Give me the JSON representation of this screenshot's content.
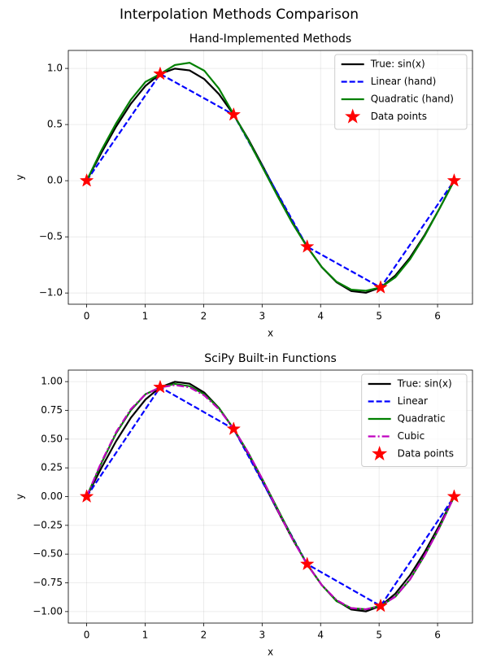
{
  "title": "Interpolation Methods Comparison",
  "chart_data": [
    {
      "type": "line",
      "title": "Hand-Implemented Methods",
      "xlabel": "x",
      "ylabel": "y",
      "xlim": [
        -0.314,
        6.597
      ],
      "ylim": [
        -1.1,
        1.16
      ],
      "xticks": [
        0,
        1,
        2,
        3,
        4,
        5,
        6
      ],
      "yticks": [
        {
          "value": -1,
          "label": "−1.0"
        },
        {
          "value": -0.5,
          "label": "−0.5"
        },
        {
          "value": 0,
          "label": "0.0"
        },
        {
          "value": 0.5,
          "label": "0.5"
        },
        {
          "value": 1,
          "label": "1.0"
        }
      ],
      "grid": true,
      "legend": "upper right",
      "series": [
        {
          "name": "True: sin(x)",
          "color": "#000000",
          "style": "solid",
          "x": [
            0,
            0.2513,
            0.5027,
            0.754,
            1.0053,
            1.2566,
            1.508,
            1.7593,
            2.0106,
            2.2619,
            2.5133,
            2.7646,
            3.0159,
            3.2673,
            3.5186,
            3.7699,
            4.0212,
            4.2726,
            4.5239,
            4.7752,
            5.0265,
            5.2779,
            5.5292,
            5.7805,
            6.0319,
            6.2832
          ],
          "values": [
            0,
            0.2487,
            0.4818,
            0.6845,
            0.8443,
            0.9511,
            0.998,
            0.9823,
            0.9048,
            0.7705,
            0.5878,
            0.3681,
            0.1253,
            -0.1253,
            -0.3681,
            -0.5878,
            -0.7705,
            -0.9048,
            -0.9823,
            -0.998,
            -0.9511,
            -0.8443,
            -0.6845,
            -0.4818,
            -0.2487,
            0
          ]
        },
        {
          "name": "Linear (hand)",
          "color": "#0000ff",
          "style": "dashed",
          "x": [
            0,
            1.2566,
            2.5133,
            3.7699,
            5.0265,
            6.2832
          ],
          "values": [
            0,
            0.9511,
            0.5878,
            -0.5878,
            -0.9511,
            0
          ]
        },
        {
          "name": "Quadratic (hand)",
          "color": "#008000",
          "style": "solid",
          "x": [
            0,
            0.2513,
            0.5027,
            0.754,
            1.0053,
            1.2566,
            1.508,
            1.7593,
            2.0106,
            2.2619,
            2.5133,
            2.7646,
            3.0159,
            3.2673,
            3.5186,
            3.7699,
            4.0212,
            4.2726,
            4.5239,
            4.7752,
            5.0265,
            5.2779,
            5.5292,
            5.7805,
            6.0319,
            6.2832
          ],
          "values": [
            0,
            0.27,
            0.51,
            0.72,
            0.88,
            0.95,
            1.03,
            1.05,
            0.98,
            0.82,
            0.59,
            0.36,
            0.11,
            -0.14,
            -0.38,
            -0.59,
            -0.77,
            -0.9,
            -0.97,
            -0.98,
            -0.95,
            -0.86,
            -0.7,
            -0.49,
            -0.25,
            0
          ]
        },
        {
          "name": "Data points",
          "color": "#ff0000",
          "style": "star",
          "x": [
            0,
            1.2566,
            2.5133,
            3.7699,
            5.0265,
            6.2832
          ],
          "values": [
            0,
            0.9511,
            0.5878,
            -0.5878,
            -0.9511,
            0
          ]
        }
      ]
    },
    {
      "type": "line",
      "title": "SciPy Built-in Functions",
      "xlabel": "x",
      "ylabel": "y",
      "xlim": [
        -0.314,
        6.597
      ],
      "ylim": [
        -1.1,
        1.1
      ],
      "xticks": [
        0,
        1,
        2,
        3,
        4,
        5,
        6
      ],
      "yticks": [
        {
          "value": -1,
          "label": "−1.00"
        },
        {
          "value": -0.75,
          "label": "−0.75"
        },
        {
          "value": -0.5,
          "label": "−0.50"
        },
        {
          "value": -0.25,
          "label": "−0.25"
        },
        {
          "value": 0,
          "label": "0.00"
        },
        {
          "value": 0.25,
          "label": "0.25"
        },
        {
          "value": 0.5,
          "label": "0.50"
        },
        {
          "value": 0.75,
          "label": "0.75"
        },
        {
          "value": 1,
          "label": "1.00"
        }
      ],
      "grid": true,
      "legend": "upper right",
      "series": [
        {
          "name": "True: sin(x)",
          "color": "#000000",
          "style": "solid",
          "x": [
            0,
            0.2513,
            0.5027,
            0.754,
            1.0053,
            1.2566,
            1.508,
            1.7593,
            2.0106,
            2.2619,
            2.5133,
            2.7646,
            3.0159,
            3.2673,
            3.5186,
            3.7699,
            4.0212,
            4.2726,
            4.5239,
            4.7752,
            5.0265,
            5.2779,
            5.5292,
            5.7805,
            6.0319,
            6.2832
          ],
          "values": [
            0,
            0.2487,
            0.4818,
            0.6845,
            0.8443,
            0.9511,
            0.998,
            0.9823,
            0.9048,
            0.7705,
            0.5878,
            0.3681,
            0.1253,
            -0.1253,
            -0.3681,
            -0.5878,
            -0.7705,
            -0.9048,
            -0.9823,
            -0.998,
            -0.9511,
            -0.8443,
            -0.6845,
            -0.4818,
            -0.2487,
            0
          ]
        },
        {
          "name": "Linear",
          "color": "#0000ff",
          "style": "dashed",
          "x": [
            0,
            1.2566,
            2.5133,
            3.7699,
            5.0265,
            6.2832
          ],
          "values": [
            0,
            0.9511,
            0.5878,
            -0.5878,
            -0.9511,
            0
          ]
        },
        {
          "name": "Quadratic",
          "color": "#008000",
          "style": "solid",
          "x": [
            0,
            0.2513,
            0.5027,
            0.754,
            1.0053,
            1.2566,
            1.508,
            1.7593,
            2.0106,
            2.2619,
            2.5133,
            2.7646,
            3.0159,
            3.2673,
            3.5186,
            3.7699,
            4.0212,
            4.2726,
            4.5239,
            4.7752,
            5.0265,
            5.2779,
            5.5292,
            5.7805,
            6.0319,
            6.2832
          ],
          "values": [
            0,
            0.29,
            0.55,
            0.75,
            0.89,
            0.95,
            0.98,
            0.96,
            0.89,
            0.77,
            0.59,
            0.38,
            0.14,
            -0.11,
            -0.36,
            -0.59,
            -0.77,
            -0.91,
            -0.97,
            -0.98,
            -0.95,
            -0.87,
            -0.72,
            -0.51,
            -0.27,
            0
          ]
        },
        {
          "name": "Cubic",
          "color": "#bf00bf",
          "style": "dashdot",
          "x": [
            0,
            0.2513,
            0.5027,
            0.754,
            1.0053,
            1.2566,
            1.508,
            1.7593,
            2.0106,
            2.2619,
            2.5133,
            2.7646,
            3.0159,
            3.2673,
            3.5186,
            3.7699,
            4.0212,
            4.2726,
            4.5239,
            4.7752,
            5.0265,
            5.2779,
            5.5292,
            5.7805,
            6.0319,
            6.2832
          ],
          "values": [
            0,
            0.3,
            0.56,
            0.76,
            0.89,
            0.95,
            0.97,
            0.95,
            0.88,
            0.76,
            0.59,
            0.38,
            0.14,
            -0.12,
            -0.37,
            -0.59,
            -0.77,
            -0.9,
            -0.97,
            -0.98,
            -0.95,
            -0.87,
            -0.72,
            -0.51,
            -0.27,
            0
          ]
        },
        {
          "name": "Data points",
          "color": "#ff0000",
          "style": "star",
          "x": [
            0,
            1.2566,
            2.5133,
            3.7699,
            5.0265,
            6.2832
          ],
          "values": [
            0,
            0.9511,
            0.5878,
            -0.5878,
            -0.9511,
            0
          ]
        }
      ]
    }
  ]
}
